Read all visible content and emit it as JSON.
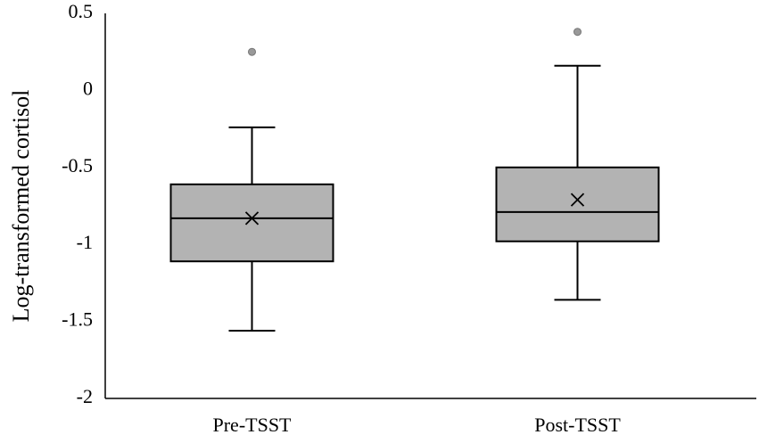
{
  "chart_data": {
    "type": "box",
    "y_label": "Log-transformed cortisol",
    "categories": [
      "Pre-TSST",
      "Post-TSST"
    ],
    "color": "#b3b3b3",
    "boxes": [
      {
        "min": -1.56,
        "q1": -1.11,
        "median": -0.83,
        "q3": -0.61,
        "max": -0.24,
        "mean": -0.83,
        "outliers": [
          0.25
        ]
      },
      {
        "min": -1.36,
        "q1": -0.98,
        "median": -0.79,
        "q3": -0.5,
        "max": 0.16,
        "mean": -0.71,
        "outliers": [
          0.38
        ]
      }
    ],
    "ylim": [
      -2,
      0.5
    ],
    "yticks": [
      -2,
      -1.5,
      -1,
      -0.5,
      0,
      0.5
    ],
    "grid": false
  }
}
